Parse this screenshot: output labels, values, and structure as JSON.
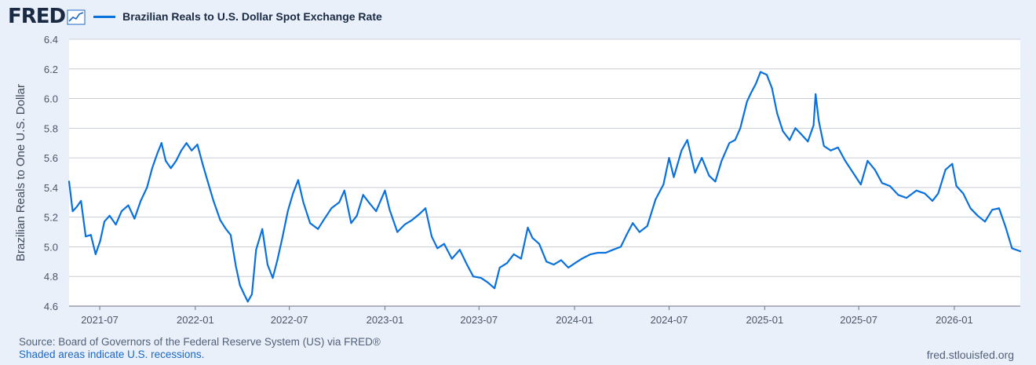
{
  "brand": {
    "logo_text": "FRED",
    "logo_icon": "chart-line-icon"
  },
  "legend": {
    "label": "Brazilian Reals to U.S. Dollar Spot Exchange Rate",
    "color": "#0a71dc"
  },
  "footer": {
    "source": "Source: Board of Governors of the Federal Reserve System (US) via FRED®",
    "note": "Shaded areas indicate U.S. recessions.",
    "url": "fred.stlouisfed.org"
  },
  "chart_data": {
    "type": "line",
    "title": "",
    "xlabel": "",
    "ylabel": "Brazilian Reals to One U.S. Dollar",
    "ylim": [
      4.6,
      6.4
    ],
    "y_ticks": [
      "4.6",
      "4.8",
      "5.0",
      "5.2",
      "5.4",
      "5.6",
      "5.8",
      "6.0",
      "6.2",
      "6.4"
    ],
    "x_range": [
      "2021-05-03",
      "2026-05-08"
    ],
    "x_ticks": [
      "2021-07",
      "2022-01",
      "2022-07",
      "2023-01",
      "2023-07",
      "2024-01",
      "2024-07",
      "2025-01",
      "2025-07",
      "2026-01"
    ],
    "grid": true,
    "series": [
      {
        "name": "Brazilian Reals to U.S. Dollar Spot Exchange Rate",
        "color": "#0a71dc",
        "points": [
          [
            "2021-05-03",
            5.44
          ],
          [
            "2021-05-10",
            5.24
          ],
          [
            "2021-05-18",
            5.27
          ],
          [
            "2021-05-26",
            5.31
          ],
          [
            "2021-06-04",
            5.07
          ],
          [
            "2021-06-14",
            5.08
          ],
          [
            "2021-06-23",
            4.95
          ],
          [
            "2021-07-02",
            5.04
          ],
          [
            "2021-07-10",
            5.17
          ],
          [
            "2021-07-20",
            5.21
          ],
          [
            "2021-08-01",
            5.15
          ],
          [
            "2021-08-12",
            5.24
          ],
          [
            "2021-08-25",
            5.28
          ],
          [
            "2021-09-06",
            5.19
          ],
          [
            "2021-09-18",
            5.31
          ],
          [
            "2021-09-30",
            5.4
          ],
          [
            "2021-10-10",
            5.53
          ],
          [
            "2021-10-20",
            5.63
          ],
          [
            "2021-10-28",
            5.7
          ],
          [
            "2021-11-05",
            5.58
          ],
          [
            "2021-11-15",
            5.53
          ],
          [
            "2021-11-25",
            5.58
          ],
          [
            "2021-12-05",
            5.65
          ],
          [
            "2021-12-15",
            5.7
          ],
          [
            "2021-12-25",
            5.65
          ],
          [
            "2022-01-05",
            5.69
          ],
          [
            "2022-01-15",
            5.56
          ],
          [
            "2022-01-25",
            5.44
          ],
          [
            "2022-02-05",
            5.31
          ],
          [
            "2022-02-18",
            5.18
          ],
          [
            "2022-03-01",
            5.12
          ],
          [
            "2022-03-10",
            5.08
          ],
          [
            "2022-03-20",
            4.87
          ],
          [
            "2022-03-28",
            4.74
          ],
          [
            "2022-04-05",
            4.68
          ],
          [
            "2022-04-12",
            4.63
          ],
          [
            "2022-04-20",
            4.68
          ],
          [
            "2022-04-28",
            4.98
          ],
          [
            "2022-05-10",
            5.12
          ],
          [
            "2022-05-20",
            4.88
          ],
          [
            "2022-05-30",
            4.79
          ],
          [
            "2022-06-08",
            4.91
          ],
          [
            "2022-06-18",
            5.07
          ],
          [
            "2022-06-28",
            5.24
          ],
          [
            "2022-07-08",
            5.36
          ],
          [
            "2022-07-18",
            5.45
          ],
          [
            "2022-07-28",
            5.3
          ],
          [
            "2022-08-10",
            5.16
          ],
          [
            "2022-08-25",
            5.12
          ],
          [
            "2022-09-05",
            5.18
          ],
          [
            "2022-09-20",
            5.26
          ],
          [
            "2022-10-05",
            5.3
          ],
          [
            "2022-10-15",
            5.38
          ],
          [
            "2022-10-28",
            5.16
          ],
          [
            "2022-11-08",
            5.21
          ],
          [
            "2022-11-20",
            5.35
          ],
          [
            "2022-12-01",
            5.3
          ],
          [
            "2022-12-15",
            5.24
          ],
          [
            "2023-01-01",
            5.38
          ],
          [
            "2023-01-10",
            5.25
          ],
          [
            "2023-01-25",
            5.1
          ],
          [
            "2023-02-08",
            5.15
          ],
          [
            "2023-02-22",
            5.18
          ],
          [
            "2023-03-08",
            5.22
          ],
          [
            "2023-03-20",
            5.26
          ],
          [
            "2023-04-01",
            5.07
          ],
          [
            "2023-04-12",
            4.99
          ],
          [
            "2023-04-25",
            5.02
          ],
          [
            "2023-05-10",
            4.92
          ],
          [
            "2023-05-25",
            4.98
          ],
          [
            "2023-06-08",
            4.88
          ],
          [
            "2023-06-20",
            4.8
          ],
          [
            "2023-07-05",
            4.79
          ],
          [
            "2023-07-18",
            4.76
          ],
          [
            "2023-07-31",
            4.72
          ],
          [
            "2023-08-10",
            4.86
          ],
          [
            "2023-08-24",
            4.89
          ],
          [
            "2023-09-06",
            4.95
          ],
          [
            "2023-09-20",
            4.92
          ],
          [
            "2023-10-03",
            5.13
          ],
          [
            "2023-10-12",
            5.06
          ],
          [
            "2023-10-25",
            5.02
          ],
          [
            "2023-11-08",
            4.9
          ],
          [
            "2023-11-22",
            4.88
          ],
          [
            "2023-12-06",
            4.91
          ],
          [
            "2023-12-20",
            4.86
          ],
          [
            "2024-01-02",
            4.89
          ],
          [
            "2024-01-15",
            4.92
          ],
          [
            "2024-02-01",
            4.95
          ],
          [
            "2024-02-15",
            4.96
          ],
          [
            "2024-03-01",
            4.96
          ],
          [
            "2024-03-15",
            4.98
          ],
          [
            "2024-03-30",
            5.0
          ],
          [
            "2024-04-10",
            5.08
          ],
          [
            "2024-04-22",
            5.16
          ],
          [
            "2024-05-05",
            5.1
          ],
          [
            "2024-05-20",
            5.14
          ],
          [
            "2024-06-05",
            5.32
          ],
          [
            "2024-06-20",
            5.42
          ],
          [
            "2024-07-01",
            5.6
          ],
          [
            "2024-07-10",
            5.47
          ],
          [
            "2024-07-25",
            5.65
          ],
          [
            "2024-08-05",
            5.72
          ],
          [
            "2024-08-20",
            5.5
          ],
          [
            "2024-09-02",
            5.6
          ],
          [
            "2024-09-16",
            5.48
          ],
          [
            "2024-09-28",
            5.44
          ],
          [
            "2024-10-10",
            5.58
          ],
          [
            "2024-10-25",
            5.7
          ],
          [
            "2024-11-05",
            5.72
          ],
          [
            "2024-11-15",
            5.8
          ],
          [
            "2024-11-28",
            5.98
          ],
          [
            "2024-12-06",
            6.04
          ],
          [
            "2024-12-15",
            6.1
          ],
          [
            "2024-12-24",
            6.18
          ],
          [
            "2025-01-05",
            6.16
          ],
          [
            "2025-01-15",
            6.07
          ],
          [
            "2025-01-25",
            5.9
          ],
          [
            "2025-02-05",
            5.78
          ],
          [
            "2025-02-18",
            5.72
          ],
          [
            "2025-03-01",
            5.8
          ],
          [
            "2025-03-12",
            5.76
          ],
          [
            "2025-03-25",
            5.71
          ],
          [
            "2025-04-05",
            5.82
          ],
          [
            "2025-04-09",
            6.03
          ],
          [
            "2025-04-15",
            5.85
          ],
          [
            "2025-04-25",
            5.68
          ],
          [
            "2025-05-08",
            5.65
          ],
          [
            "2025-05-22",
            5.67
          ],
          [
            "2025-06-05",
            5.58
          ],
          [
            "2025-06-20",
            5.5
          ],
          [
            "2025-07-05",
            5.42
          ],
          [
            "2025-07-18",
            5.58
          ],
          [
            "2025-08-01",
            5.52
          ],
          [
            "2025-08-15",
            5.43
          ],
          [
            "2025-08-30",
            5.41
          ],
          [
            "2025-09-15",
            5.35
          ],
          [
            "2025-10-01",
            5.33
          ],
          [
            "2025-10-20",
            5.38
          ],
          [
            "2025-11-05",
            5.36
          ],
          [
            "2025-11-20",
            5.31
          ],
          [
            "2025-12-01",
            5.36
          ],
          [
            "2025-12-15",
            5.52
          ],
          [
            "2025-12-28",
            5.56
          ],
          [
            "2026-01-05",
            5.41
          ],
          [
            "2026-01-18",
            5.36
          ],
          [
            "2026-02-01",
            5.26
          ],
          [
            "2026-02-15",
            5.21
          ],
          [
            "2026-03-01",
            5.17
          ],
          [
            "2026-03-15",
            5.25
          ],
          [
            "2026-03-28",
            5.26
          ],
          [
            "2026-04-10",
            5.13
          ],
          [
            "2026-04-22",
            4.99
          ],
          [
            "2026-05-08",
            4.97
          ]
        ]
      }
    ]
  }
}
